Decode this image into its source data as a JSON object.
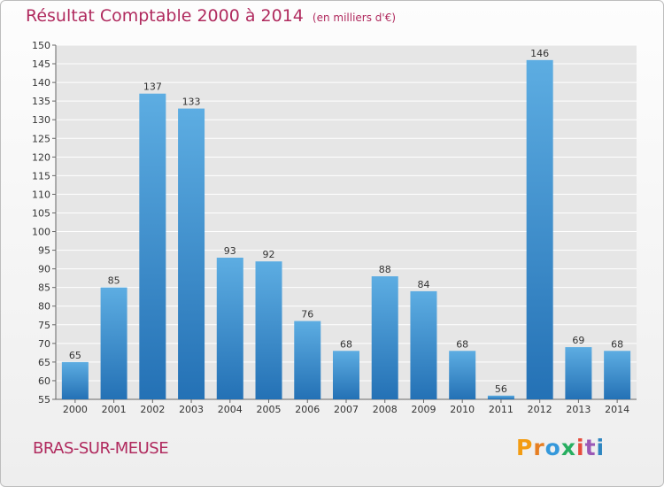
{
  "header": {
    "title": "Résultat Comptable 2000 à 2014",
    "unit": "(en milliers d'€)"
  },
  "footer": {
    "location": "BRAS-SUR-MEUSE",
    "brand": "Proxiti"
  },
  "colors": {
    "title": "#b02a5e",
    "bar_light": "#5dade2",
    "bar_dark": "#2471b5",
    "brand_letters": [
      "#f39c12",
      "#e67e22",
      "#3498db",
      "#27ae60",
      "#e74c3c",
      "#9b59b6",
      "#2e86c1"
    ]
  },
  "chart_data": {
    "type": "bar",
    "title": "Résultat Comptable 2000 à 2014",
    "xlabel": "",
    "ylabel": "",
    "categories": [
      "2000",
      "2001",
      "2002",
      "2003",
      "2004",
      "2005",
      "2006",
      "2007",
      "2008",
      "2009",
      "2010",
      "2011",
      "2012",
      "2013",
      "2014"
    ],
    "values": [
      65,
      85,
      137,
      133,
      93,
      92,
      76,
      68,
      88,
      84,
      68,
      56,
      146,
      69,
      68
    ],
    "ylim": [
      55,
      150
    ],
    "ytick_step": 5,
    "grid": true,
    "data_labels": true
  }
}
